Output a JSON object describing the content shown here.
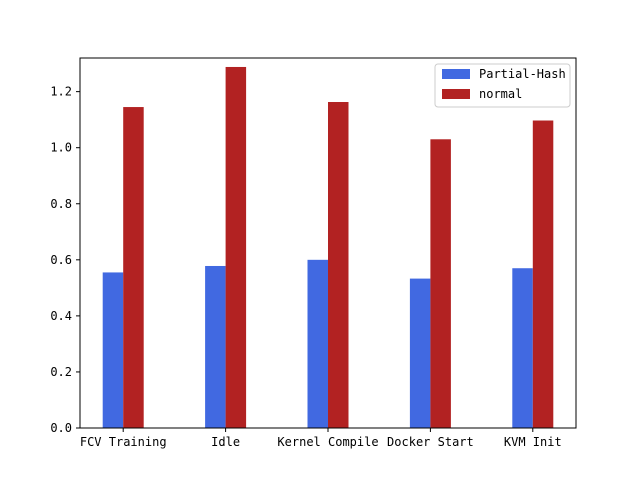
{
  "chart_data": {
    "type": "bar",
    "categories": [
      "FCV Training",
      "Idle",
      "Kernel Compile",
      "Docker Start",
      "KVM Init"
    ],
    "series": [
      {
        "name": "Partial-Hash",
        "color": "#4169e1",
        "values": [
          0.555,
          0.578,
          0.6,
          0.533,
          0.57
        ]
      },
      {
        "name": "normal",
        "color": "#b22222",
        "values": [
          1.145,
          1.288,
          1.163,
          1.03,
          1.097
        ]
      }
    ],
    "ylim": [
      0,
      1.32
    ],
    "yticks": [
      "0.0",
      "0.2",
      "0.4",
      "0.6",
      "0.8",
      "1.0",
      "1.2"
    ],
    "title": "",
    "xlabel": "",
    "ylabel": "",
    "grid": false,
    "legend_position": "top-right"
  }
}
